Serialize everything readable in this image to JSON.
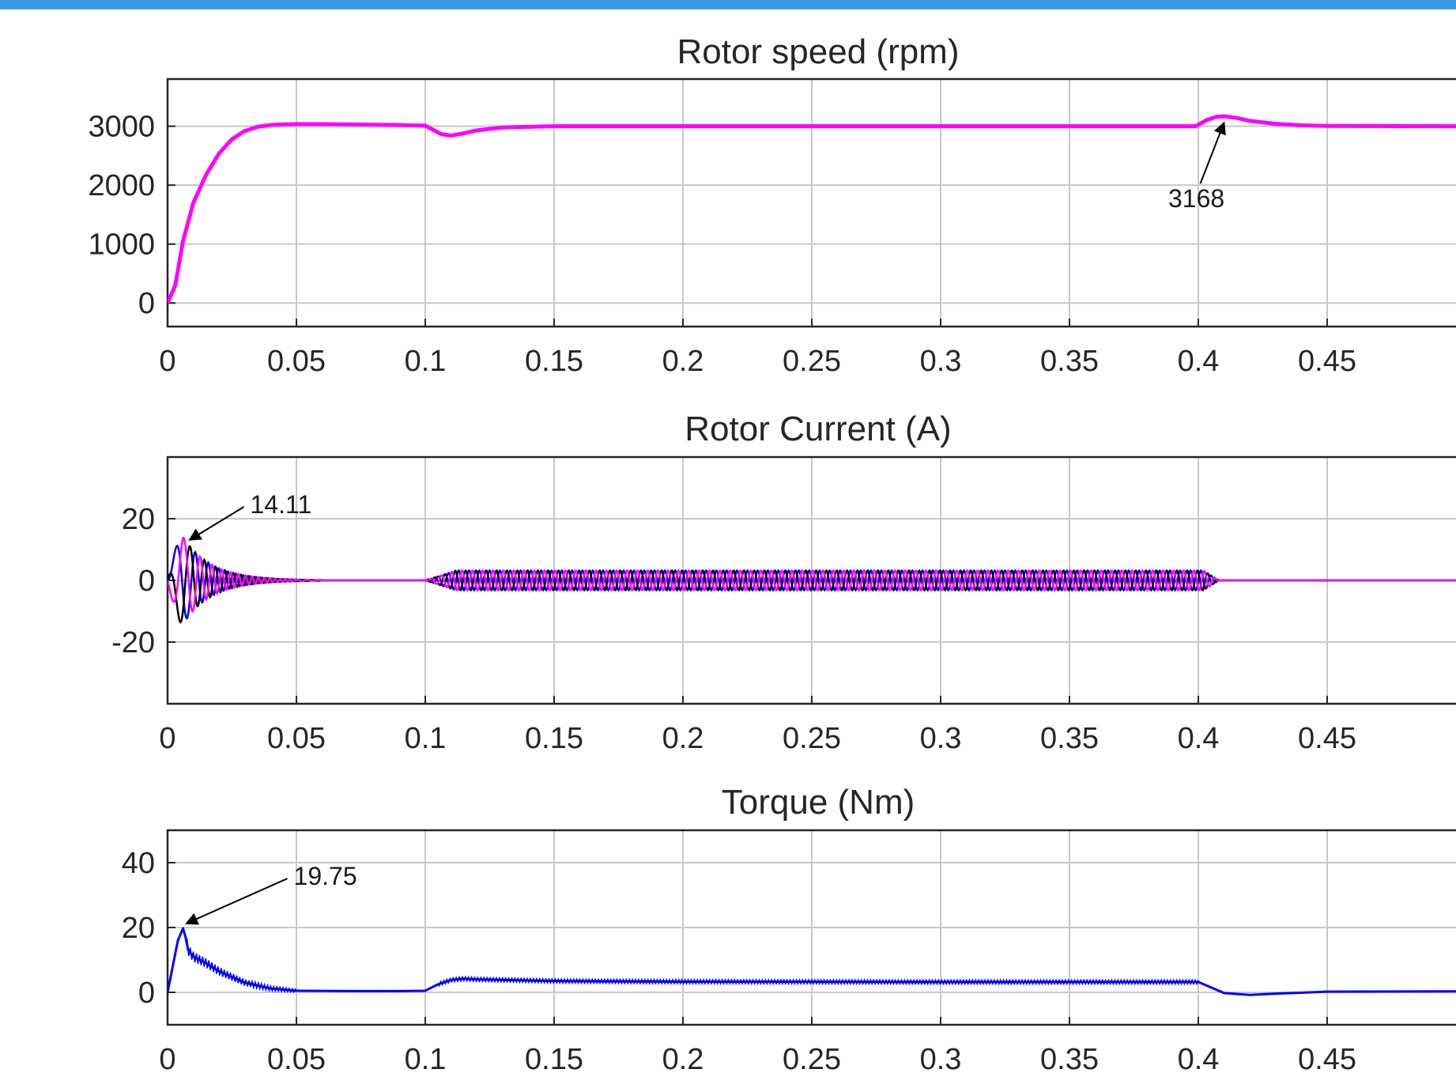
{
  "chart_data": [
    {
      "type": "line",
      "title": "Rotor speed (rpm)",
      "xlim": [
        0,
        0.5
      ],
      "ylim": [
        -400,
        3800
      ],
      "xticks": [
        0,
        0.05,
        0.1,
        0.15,
        0.2,
        0.25,
        0.3,
        0.35,
        0.4,
        0.45
      ],
      "yticks": [
        0,
        1000,
        2000,
        3000
      ],
      "grid": true,
      "series": [
        {
          "color": "#ff00ff",
          "x": [
            0,
            0.003,
            0.006,
            0.01,
            0.015,
            0.02,
            0.025,
            0.03,
            0.035,
            0.04,
            0.045,
            0.05,
            0.06,
            0.07,
            0.08,
            0.09,
            0.1,
            0.103,
            0.106,
            0.11,
            0.115,
            0.12,
            0.13,
            0.15,
            0.2,
            0.3,
            0.399,
            0.403,
            0.407,
            0.41,
            0.415,
            0.42,
            0.43,
            0.44,
            0.45,
            0.5
          ],
          "y": [
            0,
            300,
            1050,
            1700,
            2180,
            2540,
            2780,
            2920,
            2990,
            3020,
            3030,
            3035,
            3035,
            3030,
            3025,
            3020,
            3010,
            2940,
            2870,
            2840,
            2880,
            2930,
            2980,
            3000,
            3000,
            3000,
            3000,
            3100,
            3160,
            3168,
            3140,
            3090,
            3040,
            3015,
            3005,
            3000
          ]
        }
      ],
      "annotations": [
        {
          "text": "3168",
          "x": 0.41,
          "y": 3168
        }
      ]
    },
    {
      "type": "line",
      "title": "Rotor Current (A)",
      "xlim": [
        0,
        0.5
      ],
      "ylim": [
        -40,
        40
      ],
      "xticks": [
        0,
        0.05,
        0.1,
        0.15,
        0.2,
        0.25,
        0.3,
        0.35,
        0.4,
        0.45
      ],
      "yticks": [
        -20,
        0,
        20
      ],
      "grid": true,
      "phases": [
        {
          "color": "#0000ff",
          "phase": 0
        },
        {
          "color": "#000000",
          "phase": 2.094
        },
        {
          "color": "#ff00ff",
          "phase": 4.189
        }
      ],
      "envelope": {
        "startup_peak": 14.11,
        "startup_decay_end": 0.05,
        "load_start": 0.1,
        "load_end": 0.408,
        "load_amplitude": 3.2
      },
      "annotations": [
        {
          "text": "14.11",
          "x": 0.006,
          "y": 14.11
        }
      ]
    },
    {
      "type": "line",
      "title": "Torque (Nm)",
      "xlim": [
        0,
        0.5
      ],
      "ylim": [
        -10,
        50
      ],
      "xticks": [
        0,
        0.05,
        0.1,
        0.15,
        0.2,
        0.25,
        0.3,
        0.35,
        0.4,
        0.45
      ],
      "yticks": [
        0,
        20,
        40
      ],
      "grid": true,
      "series": [
        {
          "color": "#0000ff",
          "x": [
            0,
            0.002,
            0.004,
            0.006,
            0.007,
            0.008,
            0.01,
            0.015,
            0.02,
            0.03,
            0.04,
            0.05,
            0.07,
            0.09,
            0.1,
            0.105,
            0.11,
            0.115,
            0.12,
            0.15,
            0.2,
            0.3,
            0.4,
            0.405,
            0.41,
            0.42,
            0.43,
            0.45,
            0.5
          ],
          "y": [
            0,
            8,
            16,
            19.75,
            17,
            13,
            11,
            9,
            6.5,
            3,
            1.2,
            0.5,
            0.4,
            0.4,
            0.5,
            2.5,
            3.8,
            4.2,
            4.0,
            3.5,
            3.3,
            3.2,
            3.2,
            1.5,
            -0.2,
            -0.8,
            -0.4,
            0.2,
            0.3
          ]
        }
      ],
      "annotations": [
        {
          "text": "19.75",
          "x": 0.006,
          "y": 19.75
        }
      ]
    }
  ]
}
